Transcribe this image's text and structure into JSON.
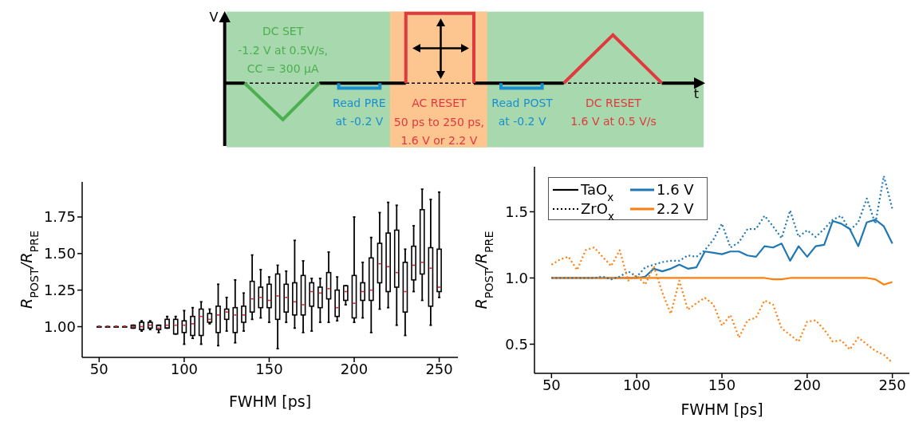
{
  "chart_data": [
    {
      "type": "other",
      "annotations": [
        "V",
        "t",
        "DC SET",
        "-1.2 V at 0.5V/s,",
        "CC = 300 μA",
        "Read PRE",
        "at -0.2 V",
        "AC RESET",
        "50 ps to 250 ps,",
        "1.6 V or 2.2 V",
        "Read POST",
        "at -0.2 V",
        "DC RESET",
        "1.6 V at 0.5 V/s"
      ]
    },
    {
      "type": "box",
      "xlabel": "FWHM [ps]",
      "ylabel": "R$_{POST}$/R$_{PRE}$",
      "color": "#000000",
      "x": [
        50,
        55,
        60,
        65,
        70,
        75,
        80,
        85,
        90,
        95,
        100,
        105,
        110,
        115,
        120,
        125,
        130,
        135,
        140,
        145,
        150,
        155,
        160,
        165,
        170,
        175,
        180,
        185,
        190,
        195,
        200,
        205,
        210,
        215,
        220,
        225,
        230,
        235,
        240,
        245,
        250
      ],
      "boxes": [
        {
          "low": 1.0,
          "q1": 1.0,
          "median": 1.0,
          "q3": 1.0,
          "high": 1.0
        },
        {
          "low": 1.0,
          "q1": 1.0,
          "median": 1.0,
          "q3": 1.0,
          "high": 1.0
        },
        {
          "low": 1.0,
          "q1": 1.0,
          "median": 1.0,
          "q3": 1.0,
          "high": 1.0
        },
        {
          "low": 1.0,
          "q1": 1.0,
          "median": 1.0,
          "q3": 1.0,
          "high": 1.0
        },
        {
          "low": 0.99,
          "q1": 0.99,
          "median": 1.0,
          "q3": 1.01,
          "high": 1.01
        },
        {
          "low": 0.97,
          "q1": 0.98,
          "median": 1.0,
          "q3": 1.03,
          "high": 1.04
        },
        {
          "low": 0.98,
          "q1": 0.99,
          "median": 1.01,
          "q3": 1.03,
          "high": 1.04
        },
        {
          "low": 0.96,
          "q1": 0.98,
          "median": 0.99,
          "q3": 1.01,
          "high": 1.01
        },
        {
          "low": 0.99,
          "q1": 0.99,
          "median": 1.01,
          "q3": 1.05,
          "high": 1.07
        },
        {
          "low": 0.95,
          "q1": 0.95,
          "median": 1.01,
          "q3": 1.05,
          "high": 1.07
        },
        {
          "low": 0.88,
          "q1": 0.96,
          "median": 1.01,
          "q3": 1.04,
          "high": 1.11
        },
        {
          "low": 0.92,
          "q1": 0.94,
          "median": 1.02,
          "q3": 1.07,
          "high": 1.13
        },
        {
          "low": 0.88,
          "q1": 0.94,
          "median": 1.07,
          "q3": 1.12,
          "high": 1.17
        },
        {
          "low": 1.02,
          "q1": 1.03,
          "median": 1.05,
          "q3": 1.09,
          "high": 1.12
        },
        {
          "low": 0.87,
          "q1": 0.96,
          "median": 1.08,
          "q3": 1.14,
          "high": 1.29
        },
        {
          "low": 0.97,
          "q1": 1.05,
          "median": 1.1,
          "q3": 1.12,
          "high": 1.2
        },
        {
          "low": 0.89,
          "q1": 0.96,
          "median": 1.08,
          "q3": 1.13,
          "high": 1.32
        },
        {
          "low": 0.97,
          "q1": 1.03,
          "median": 1.08,
          "q3": 1.14,
          "high": 1.23
        },
        {
          "low": 1.05,
          "q1": 1.1,
          "median": 1.19,
          "q3": 1.31,
          "high": 1.49
        },
        {
          "low": 1.06,
          "q1": 1.13,
          "median": 1.2,
          "q3": 1.27,
          "high": 1.39
        },
        {
          "low": 1.03,
          "q1": 1.13,
          "median": 1.18,
          "q3": 1.29,
          "high": 1.34
        },
        {
          "low": 0.85,
          "q1": 1.05,
          "median": 1.21,
          "q3": 1.36,
          "high": 1.42
        },
        {
          "low": 1.03,
          "q1": 1.1,
          "median": 1.2,
          "q3": 1.29,
          "high": 1.38
        },
        {
          "low": 0.99,
          "q1": 1.08,
          "median": 1.17,
          "q3": 1.3,
          "high": 1.59
        },
        {
          "low": 0.96,
          "q1": 1.08,
          "median": 1.15,
          "q3": 1.35,
          "high": 1.45
        },
        {
          "low": 0.97,
          "q1": 1.14,
          "median": 1.24,
          "q3": 1.3,
          "high": 1.33
        },
        {
          "low": 1.03,
          "q1": 1.13,
          "median": 1.23,
          "q3": 1.27,
          "high": 1.33
        },
        {
          "low": 1.03,
          "q1": 1.19,
          "median": 1.26,
          "q3": 1.37,
          "high": 1.51
        },
        {
          "low": 1.04,
          "q1": 1.07,
          "median": 1.13,
          "q3": 1.25,
          "high": 1.34
        },
        {
          "low": 1.15,
          "q1": 1.18,
          "median": 1.24,
          "q3": 1.28,
          "high": 1.28
        },
        {
          "low": 1.03,
          "q1": 1.06,
          "median": 1.16,
          "q3": 1.35,
          "high": 1.75
        },
        {
          "low": 1.06,
          "q1": 1.18,
          "median": 1.24,
          "q3": 1.3,
          "high": 1.44
        },
        {
          "low": 0.96,
          "q1": 1.18,
          "median": 1.25,
          "q3": 1.47,
          "high": 1.61
        },
        {
          "low": 1.12,
          "q1": 1.3,
          "median": 1.43,
          "q3": 1.57,
          "high": 1.78
        },
        {
          "low": 1.13,
          "q1": 1.24,
          "median": 1.41,
          "q3": 1.64,
          "high": 1.85
        },
        {
          "low": 1.01,
          "q1": 1.27,
          "median": 1.37,
          "q3": 1.66,
          "high": 1.83
        },
        {
          "low": 0.94,
          "q1": 1.1,
          "median": 1.24,
          "q3": 1.44,
          "high": 1.53
        },
        {
          "low": 1.24,
          "q1": 1.32,
          "median": 1.42,
          "q3": 1.55,
          "high": 1.69
        },
        {
          "low": 1.18,
          "q1": 1.36,
          "median": 1.44,
          "q3": 1.8,
          "high": 1.94
        },
        {
          "low": 1.01,
          "q1": 1.14,
          "median": 1.4,
          "q3": 1.54,
          "high": 1.87
        },
        {
          "low": 1.2,
          "q1": 1.24,
          "median": 1.27,
          "q3": 1.53,
          "high": 1.92
        }
      ],
      "xlim": [
        40,
        261
      ],
      "xticks": [
        50,
        100,
        150,
        200,
        250
      ],
      "ylim": [
        0.79,
        1.99
      ],
      "yticks": [
        {
          "value": 1.0,
          "label": "1.00"
        },
        {
          "value": 1.25,
          "label": "1.25"
        },
        {
          "value": 1.5,
          "label": "1.50"
        },
        {
          "value": 1.75,
          "label": "1.75"
        }
      ]
    },
    {
      "type": "line",
      "xlabel": "FWHM [ps]",
      "ylabel": "R$_{POST}$/R$_{PRE}$",
      "annotations": [
        "TaO$_{x}$",
        "ZrO$_{x}$",
        "1.6 V",
        "2.2 V"
      ],
      "x": [
        50,
        55,
        60,
        65,
        70,
        75,
        80,
        85,
        90,
        95,
        100,
        105,
        110,
        115,
        120,
        125,
        130,
        135,
        140,
        145,
        150,
        155,
        160,
        165,
        170,
        175,
        180,
        185,
        190,
        195,
        200,
        205,
        210,
        215,
        220,
        225,
        230,
        235,
        240,
        245,
        250
      ],
      "series": [
        {
          "color": "#1f77b4",
          "line_style": "solid",
          "values": [
            1.0,
            1.0,
            1.0,
            1.0,
            1.0,
            1.0,
            1.0,
            1.0,
            1.0,
            1.0,
            1.0,
            1.01,
            1.07,
            1.05,
            1.07,
            1.1,
            1.07,
            1.08,
            1.2,
            1.19,
            1.18,
            1.2,
            1.2,
            1.17,
            1.16,
            1.24,
            1.23,
            1.26,
            1.13,
            1.24,
            1.16,
            1.24,
            1.25,
            1.43,
            1.41,
            1.37,
            1.24,
            1.42,
            1.44,
            1.39,
            1.26
          ]
        },
        {
          "color": "#ff7f0e",
          "line_style": "solid",
          "values": [
            1.0,
            1.0,
            1.0,
            1.0,
            1.0,
            1.0,
            1.0,
            1.0,
            1.0,
            1.0,
            1.0,
            1.0,
            1.0,
            1.0,
            1.0,
            1.0,
            1.0,
            1.0,
            1.0,
            1.0,
            1.0,
            1.0,
            1.0,
            1.0,
            1.0,
            1.0,
            0.99,
            0.99,
            1.0,
            1.0,
            1.0,
            1.0,
            1.0,
            1.0,
            1.0,
            1.0,
            1.0,
            1.0,
            0.99,
            0.95,
            0.97
          ]
        },
        {
          "color": "#1f77b4",
          "line_style": "dotted",
          "values": [
            1.0,
            1.0,
            1.0,
            1.0,
            1.0,
            1.0,
            1.01,
            0.99,
            1.01,
            1.05,
            1.01,
            1.08,
            1.1,
            1.12,
            1.13,
            1.13,
            1.17,
            1.16,
            1.21,
            1.29,
            1.41,
            1.23,
            1.27,
            1.37,
            1.37,
            1.47,
            1.39,
            1.3,
            1.51,
            1.31,
            1.36,
            1.31,
            1.37,
            1.44,
            1.47,
            1.36,
            1.42,
            1.6,
            1.41,
            1.77,
            1.52
          ]
        },
        {
          "color": "#ff7f0e",
          "line_style": "dotted",
          "values": [
            1.1,
            1.14,
            1.16,
            1.06,
            1.21,
            1.23,
            1.16,
            1.09,
            1.21,
            0.98,
            1.02,
            0.95,
            1.09,
            0.89,
            0.73,
            0.98,
            0.76,
            0.81,
            0.85,
            0.8,
            0.64,
            0.72,
            0.55,
            0.68,
            0.7,
            0.83,
            0.8,
            0.62,
            0.57,
            0.52,
            0.67,
            0.68,
            0.61,
            0.52,
            0.53,
            0.46,
            0.55,
            0.5,
            0.45,
            0.42,
            0.36
          ]
        }
      ],
      "xlim": [
        40,
        260
      ],
      "xticks": [
        50,
        100,
        150,
        200,
        250
      ],
      "ylim": [
        0.28,
        1.84
      ],
      "yticks": [
        0.5,
        {
          "value": 1.0,
          "label": "1.0"
        },
        1.5
      ]
    }
  ]
}
